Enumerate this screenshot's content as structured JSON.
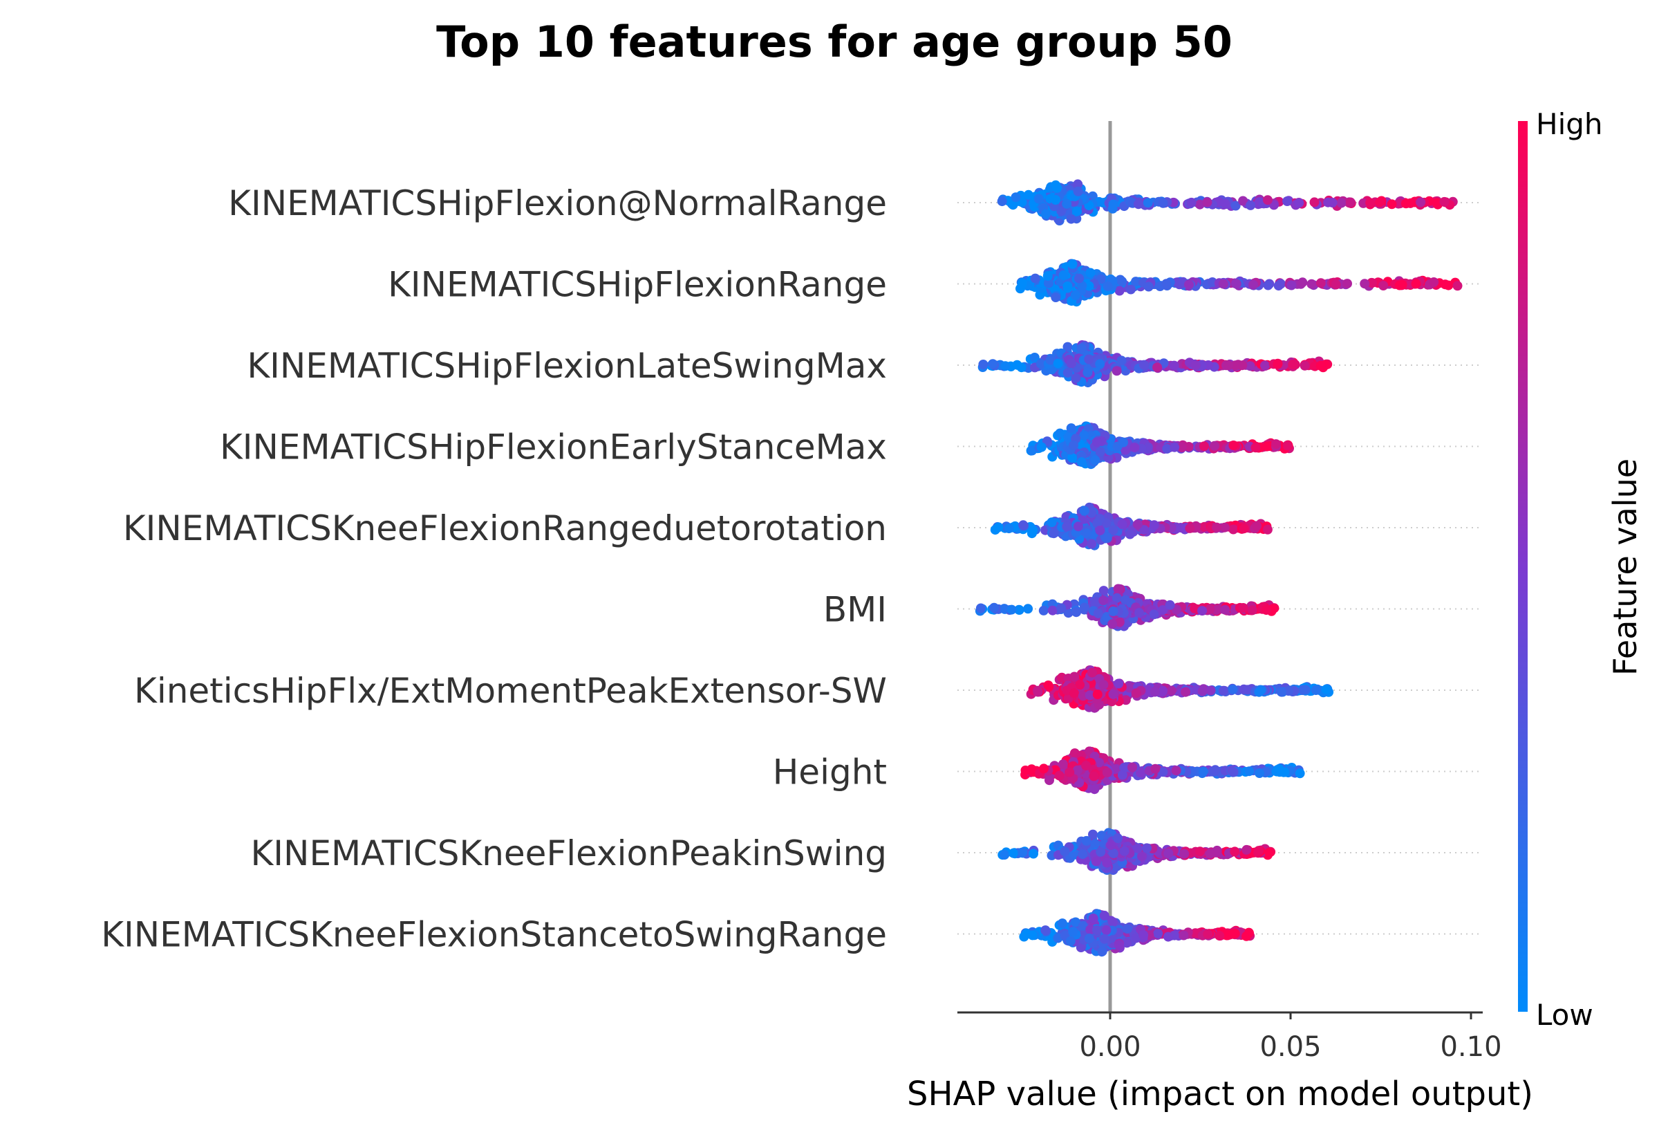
{
  "chart_data": {
    "type": "scatter",
    "subtype": "beeswarm",
    "title": "Top 10 features for age group 50",
    "xlabel": "SHAP value (impact on model output)",
    "xlim": [
      -0.042,
      0.103
    ],
    "x_ticks": [
      0.0,
      0.05,
      0.1
    ],
    "x_tick_labels": [
      "0.00",
      "0.05",
      "0.10"
    ],
    "colorbar": {
      "label": "Feature value",
      "high_label": "High",
      "low_label": "Low",
      "low_color": "#008bfb",
      "high_color": "#ff0052"
    },
    "features": [
      {
        "name": "KINEMATICSHipFlexion@NormalRange",
        "min": -0.03,
        "max": 0.097,
        "peak": -0.013,
        "pos_red": true
      },
      {
        "name": "KINEMATICSHipFlexionRange",
        "min": -0.025,
        "max": 0.097,
        "peak": -0.011,
        "pos_red": true
      },
      {
        "name": "KINEMATICSHipFlexionLateSwingMax",
        "min": -0.036,
        "max": 0.061,
        "peak": -0.008,
        "pos_red": true
      },
      {
        "name": "KINEMATICSHipFlexionEarlyStanceMax",
        "min": -0.022,
        "max": 0.05,
        "peak": -0.007,
        "pos_red": true
      },
      {
        "name": "KINEMATICSKneeFlexionRangeduetorotation",
        "min": -0.032,
        "max": 0.044,
        "peak": -0.006,
        "pos_red": true
      },
      {
        "name": "BMI",
        "min": -0.037,
        "max": 0.046,
        "peak": 0.002,
        "pos_red": true
      },
      {
        "name": "KineticsHipFlx/ExtMomentPeakExtensor-SW",
        "min": -0.022,
        "max": 0.061,
        "peak": -0.006,
        "pos_red": false
      },
      {
        "name": "Height",
        "min": -0.024,
        "max": 0.053,
        "peak": -0.006,
        "pos_red": false
      },
      {
        "name": "KINEMATICSKneeFlexionPeakinSwing",
        "min": -0.03,
        "max": 0.045,
        "peak": -0.001,
        "pos_red": true
      },
      {
        "name": "KINEMATICSKneeFlexionStancetoSwingRange",
        "min": -0.024,
        "max": 0.039,
        "peak": -0.004,
        "pos_red": true
      }
    ]
  }
}
